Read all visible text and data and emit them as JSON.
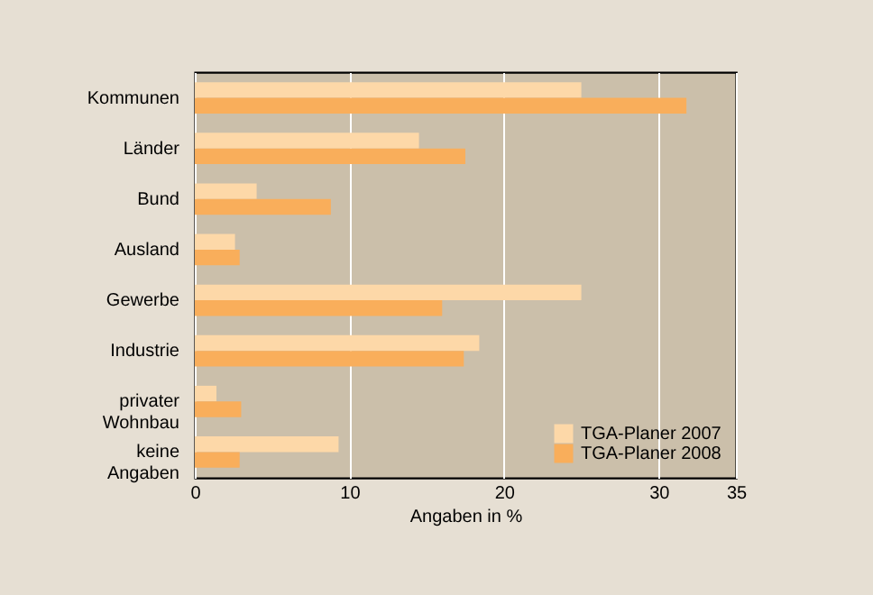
{
  "chart_data": {
    "type": "bar",
    "orientation": "horizontal",
    "categories": [
      "Kommunen",
      "Länder",
      "Bund",
      "Ausland",
      "Gewerbe",
      "Industrie",
      "privater Wohnbau",
      "keine Angaben"
    ],
    "series": [
      {
        "name": "TGA-Planer 2007",
        "color": "#fdd8a8",
        "values": [
          25.0,
          14.5,
          4.0,
          2.6,
          25.0,
          18.4,
          1.4,
          9.3
        ]
      },
      {
        "name": "TGA-Planer 2008",
        "color": "#f9ae5b",
        "values": [
          31.8,
          17.5,
          8.8,
          2.9,
          16.0,
          17.4,
          3.0,
          2.9
        ]
      }
    ],
    "xlabel": "Angaben in %",
    "xlim": [
      0,
      35
    ],
    "xticks": [
      0,
      10,
      20,
      30,
      35
    ],
    "grid": "x",
    "legend": "bottom right"
  }
}
